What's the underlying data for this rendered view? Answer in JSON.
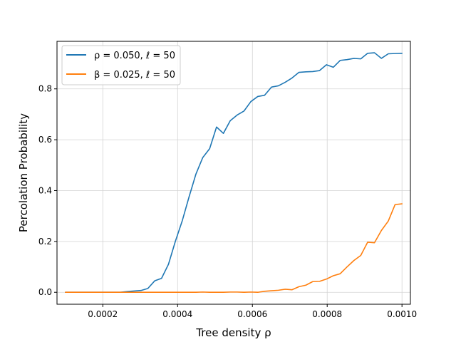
{
  "chart_data": {
    "type": "line",
    "title": "",
    "xlabel": "Tree density ρ",
    "ylabel": "Percolation Probability",
    "xlim": [
      7.75e-05,
      0.0010225
    ],
    "ylim": [
      -0.047,
      0.987
    ],
    "grid": true,
    "legend_position": "upper-left",
    "x_ticks": [
      {
        "value": 0.0002,
        "label": "0.0002"
      },
      {
        "value": 0.0004,
        "label": "0.0004"
      },
      {
        "value": 0.0006,
        "label": "0.0006"
      },
      {
        "value": 0.0008,
        "label": "0.0008"
      },
      {
        "value": 0.001,
        "label": "0.0010"
      }
    ],
    "y_ticks": [
      {
        "value": 0.0,
        "label": "0.0"
      },
      {
        "value": 0.2,
        "label": "0.2"
      },
      {
        "value": 0.4,
        "label": "0.4"
      },
      {
        "value": 0.6,
        "label": "0.6"
      },
      {
        "value": 0.8,
        "label": "0.8"
      }
    ],
    "series": [
      {
        "name": "ρ = 0.050, ℓ = 50",
        "color": "#1f77b4",
        "x": [
          0.0001,
          0.0001184,
          0.0001367,
          0.0001551,
          0.0001735,
          0.0001918,
          0.0002102,
          0.0002286,
          0.0002469,
          0.0002653,
          0.0002837,
          0.000302,
          0.0003204,
          0.0003388,
          0.0003571,
          0.0003755,
          0.0003939,
          0.0004122,
          0.0004306,
          0.000449,
          0.0004673,
          0.0004857,
          0.0005041,
          0.0005224,
          0.0005408,
          0.0005592,
          0.0005776,
          0.0005959,
          0.0006143,
          0.0006327,
          0.000651,
          0.0006694,
          0.0006878,
          0.0007061,
          0.0007245,
          0.0007429,
          0.0007612,
          0.0007796,
          0.000798,
          0.0008163,
          0.0008347,
          0.0008531,
          0.0008714,
          0.0008898,
          0.0009082,
          0.0009265,
          0.0009449,
          0.0009633,
          0.0009816,
          0.001
        ],
        "values": [
          0.0,
          0.0,
          0.0,
          0.0,
          0.0,
          0.0,
          0.0,
          0.0,
          0.0,
          0.003,
          0.005,
          0.007,
          0.015,
          0.045,
          0.055,
          0.11,
          0.2,
          0.28,
          0.375,
          0.465,
          0.53,
          0.565,
          0.65,
          0.625,
          0.675,
          0.697,
          0.713,
          0.75,
          0.77,
          0.775,
          0.807,
          0.812,
          0.826,
          0.843,
          0.865,
          0.867,
          0.868,
          0.872,
          0.895,
          0.885,
          0.912,
          0.915,
          0.92,
          0.918,
          0.94,
          0.942,
          0.92,
          0.938,
          0.939,
          0.94
        ]
      },
      {
        "name": "β = 0.025, ℓ = 50",
        "color": "#ff7f0e",
        "x": [
          0.0001,
          0.0001184,
          0.0001367,
          0.0001551,
          0.0001735,
          0.0001918,
          0.0002102,
          0.0002286,
          0.0002469,
          0.0002653,
          0.0002837,
          0.000302,
          0.0003204,
          0.0003388,
          0.0003571,
          0.0003755,
          0.0003939,
          0.0004122,
          0.0004306,
          0.000449,
          0.0004673,
          0.0004857,
          0.0005041,
          0.0005224,
          0.0005408,
          0.0005592,
          0.0005776,
          0.0005959,
          0.0006143,
          0.0006327,
          0.000651,
          0.0006694,
          0.0006878,
          0.0007061,
          0.0007245,
          0.0007429,
          0.0007612,
          0.0007796,
          0.000798,
          0.0008163,
          0.0008347,
          0.0008531,
          0.0008714,
          0.0008898,
          0.0009082,
          0.0009265,
          0.0009449,
          0.0009633,
          0.0009816,
          0.001
        ],
        "values": [
          0.0,
          0.0,
          0.0,
          0.0,
          0.0,
          0.0,
          0.0,
          0.0,
          0.0,
          0.0,
          0.0,
          0.0,
          0.0,
          0.0,
          0.0,
          0.0,
          0.0,
          0.0,
          0.0,
          0.0,
          0.001,
          0.0,
          0.0,
          0.0,
          0.001,
          0.001,
          0.0,
          0.001,
          0.0,
          0.004,
          0.006,
          0.008,
          0.012,
          0.01,
          0.022,
          0.028,
          0.042,
          0.043,
          0.052,
          0.065,
          0.073,
          0.1,
          0.125,
          0.145,
          0.197,
          0.195,
          0.243,
          0.28,
          0.345,
          0.348
        ]
      }
    ]
  }
}
